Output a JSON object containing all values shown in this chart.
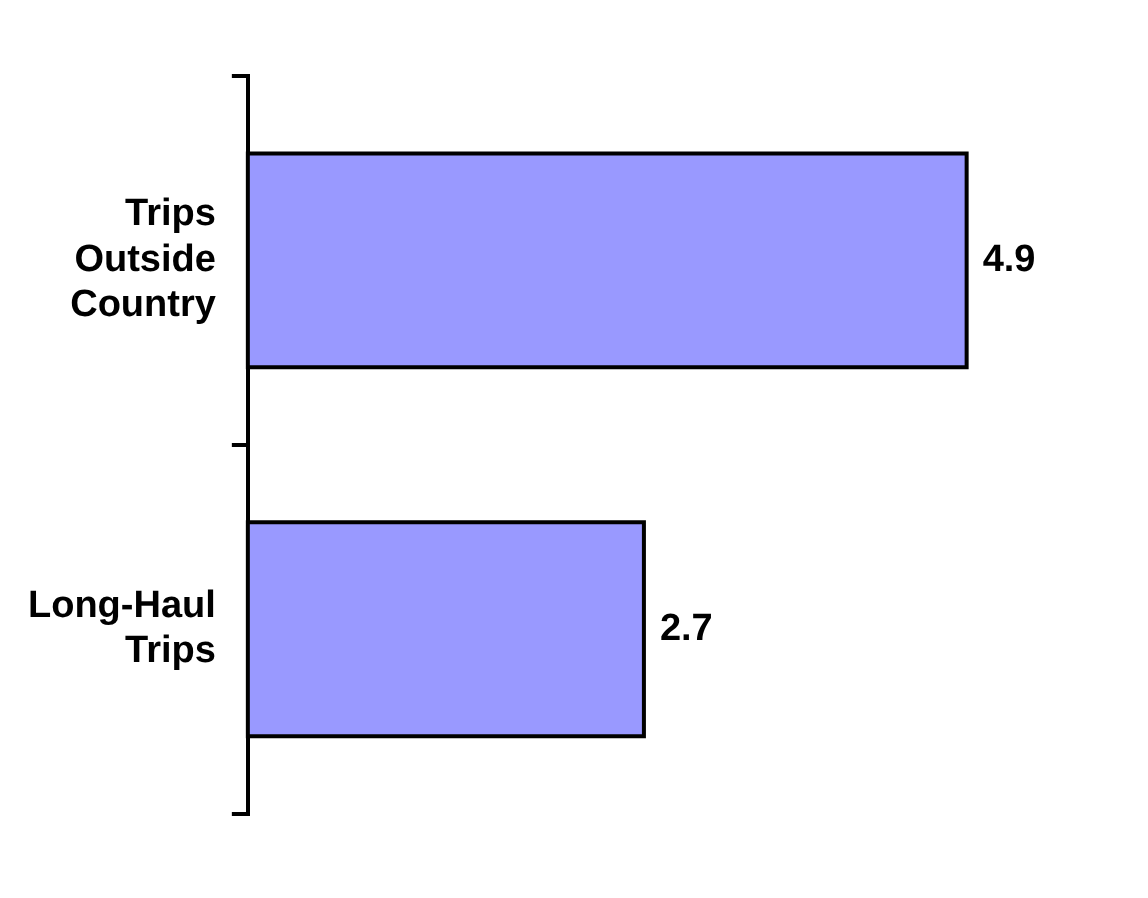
{
  "chart_data": {
    "type": "bar",
    "orientation": "horizontal",
    "categories": [
      "Trips Outside Country",
      "Long-Haul Trips"
    ],
    "values": [
      4.9,
      2.7
    ],
    "color": "#9999ff",
    "data_labels": true,
    "legend": false,
    "grid": false
  }
}
